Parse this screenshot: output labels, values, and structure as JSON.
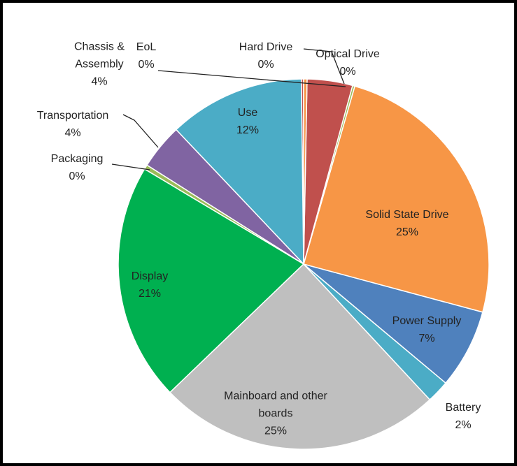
{
  "chart_data": {
    "type": "pie",
    "categories": [
      "Hard Drive",
      "Chassis & Assembly",
      "Optical Drive",
      "Solid State Drive",
      "Power Supply",
      "Battery",
      "Mainboard and other boards",
      "Display",
      "Packaging",
      "Transportation",
      "Use",
      "EoL"
    ],
    "values": [
      0.3,
      4,
      0.2,
      25,
      7,
      2,
      25,
      21,
      0.4,
      4,
      12,
      0.2
    ],
    "value_labels": [
      "0%",
      "4%",
      "0%",
      "25%",
      "7%",
      "2%",
      "25%",
      "21%",
      "0%",
      "4%",
      "12%",
      "0%"
    ],
    "colors": [
      "#f79646",
      "#c0504d",
      "#9bbb59",
      "#f79646",
      "#4f81bd",
      "#4bacc6",
      "#bfbfbf",
      "#00b050",
      "#9bbb59",
      "#8064a2",
      "#4bacc6",
      "#c0504d"
    ]
  }
}
